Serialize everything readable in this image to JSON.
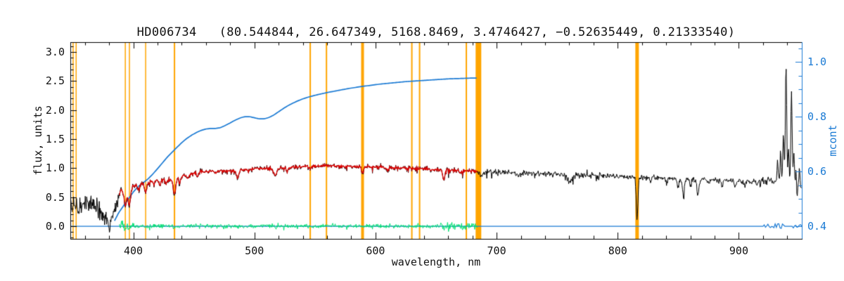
{
  "chart_data": {
    "type": "line",
    "title": "HD006734   (80.544844, 26.647349, 5168.8469, 3.4746427, −0.52635449, 0.21333540)",
    "xlabel": "wavelength, nm",
    "ylabel_left": "flux, units",
    "ylabel_right": "mcont",
    "grid": false,
    "legend": "none",
    "x_axis": {
      "range": [
        348,
        952
      ],
      "major_ticks": [
        400,
        500,
        600,
        700,
        800,
        900
      ],
      "tick_labels": [
        "400",
        "500",
        "600",
        "700",
        "800",
        "900"
      ],
      "minor_step": 20
    },
    "y_axis_left": {
      "range": [
        -0.22,
        3.17
      ],
      "major_ticks": [
        0.0,
        0.5,
        1.0,
        1.5,
        2.0,
        2.5,
        3.0
      ],
      "tick_labels": [
        "0.0",
        "0.5",
        "1.0",
        "1.5",
        "2.0",
        "2.5",
        "3.0"
      ],
      "minor_step": 0.1
    },
    "y_axis_right": {
      "range": [
        0.354,
        1.072
      ],
      "major_ticks": [
        0.4,
        0.6,
        0.8,
        1.0
      ],
      "tick_labels": [
        "0.4",
        "0.6",
        "0.8",
        "1.0"
      ],
      "minor_step": 0.05
    },
    "colors": {
      "spectrum": "#000000",
      "fit": "#e00000",
      "residual": "#00e070",
      "continuum": "#1a7ad4",
      "markers": "#ffa500",
      "text": "#111111",
      "background": "#ffffff"
    },
    "marker_lines": [
      [
        350.3,
        1.5
      ],
      [
        352.8,
        1.5
      ],
      [
        393.4,
        1.5
      ],
      [
        396.8,
        1.5
      ],
      [
        410.2,
        1.5
      ],
      [
        434.0,
        2
      ],
      [
        546.1,
        2
      ],
      [
        559.5,
        2
      ],
      [
        589.3,
        4
      ],
      [
        630.0,
        2
      ],
      [
        636.4,
        2
      ],
      [
        675.0,
        2
      ],
      [
        685.0,
        8
      ],
      [
        816.0,
        5
      ]
    ],
    "series": {
      "observed_spectrum": {
        "color_key": "spectrum",
        "noise_sigma": 0.022,
        "envelope": [
          [
            348,
            0.34
          ],
          [
            356,
            0.33
          ],
          [
            364,
            0.32
          ],
          [
            370,
            0.3
          ],
          [
            374,
            0.24
          ],
          [
            377,
            0.12
          ],
          [
            380,
            0.07
          ],
          [
            383,
            0.18
          ],
          [
            386,
            0.42
          ],
          [
            389,
            0.58
          ],
          [
            392,
            0.63
          ],
          [
            396,
            0.6
          ],
          [
            400,
            0.7
          ],
          [
            406,
            0.72
          ],
          [
            412,
            0.75
          ],
          [
            418,
            0.79
          ],
          [
            424,
            0.8
          ],
          [
            430,
            0.79
          ],
          [
            436,
            0.83
          ],
          [
            442,
            0.87
          ],
          [
            448,
            0.9
          ],
          [
            456,
            0.93
          ],
          [
            464,
            0.945
          ],
          [
            472,
            0.95
          ],
          [
            480,
            0.955
          ],
          [
            490,
            0.97
          ],
          [
            500,
            0.99
          ],
          [
            510,
            0.985
          ],
          [
            520,
            1.0
          ],
          [
            530,
            1.015
          ],
          [
            540,
            1.03
          ],
          [
            550,
            1.035
          ],
          [
            560,
            1.04
          ],
          [
            570,
            1.035
          ],
          [
            580,
            1.03
          ],
          [
            590,
            1.025
          ],
          [
            600,
            1.02
          ],
          [
            612,
            1.005
          ],
          [
            624,
            1.0
          ],
          [
            636,
            0.99
          ],
          [
            648,
            0.975
          ],
          [
            660,
            0.965
          ],
          [
            672,
            0.955
          ],
          [
            684,
            0.945
          ],
          [
            696,
            0.935
          ],
          [
            708,
            0.925
          ],
          [
            720,
            0.915
          ],
          [
            732,
            0.905
          ],
          [
            744,
            0.895
          ],
          [
            756,
            0.885
          ],
          [
            768,
            0.885
          ],
          [
            780,
            0.875
          ],
          [
            792,
            0.865
          ],
          [
            804,
            0.855
          ],
          [
            816,
            0.845
          ],
          [
            828,
            0.835
          ],
          [
            840,
            0.825
          ],
          [
            852,
            0.81
          ],
          [
            864,
            0.8
          ],
          [
            876,
            0.8
          ],
          [
            888,
            0.79
          ],
          [
            900,
            0.78
          ],
          [
            912,
            0.775
          ],
          [
            924,
            0.775
          ],
          [
            936,
            0.775
          ],
          [
            944,
            0.76
          ],
          [
            952,
            0.66
          ]
        ],
        "absorption_dips": [
          [
            393.4,
            0.3,
            1.0
          ],
          [
            396.8,
            0.26,
            1.0
          ],
          [
            404,
            0.1,
            0.8
          ],
          [
            410.2,
            0.17,
            0.9
          ],
          [
            417,
            0.07,
            0.7
          ],
          [
            422,
            0.1,
            0.8
          ],
          [
            427,
            0.08,
            0.7
          ],
          [
            434.0,
            0.28,
            1.0
          ],
          [
            438.5,
            0.1,
            0.7
          ],
          [
            445,
            0.08,
            0.7
          ],
          [
            453,
            0.07,
            0.6
          ],
          [
            468,
            0.05,
            0.6
          ],
          [
            486.1,
            0.14,
            0.9
          ],
          [
            495,
            0.05,
            0.6
          ],
          [
            517,
            0.13,
            1.3
          ],
          [
            527,
            0.08,
            0.8
          ],
          [
            546,
            0.05,
            0.6
          ],
          [
            589.3,
            0.11,
            0.9
          ],
          [
            610,
            0.04,
            0.6
          ],
          [
            656.3,
            0.2,
            0.9
          ],
          [
            670,
            0.05,
            0.6
          ],
          [
            687.5,
            0.07,
            1.4
          ],
          [
            718,
            0.05,
            1.4
          ],
          [
            760,
            0.13,
            2.0
          ],
          [
            816,
            0.72,
            0.7
          ],
          [
            827,
            0.06,
            0.7
          ],
          [
            840,
            0.08,
            0.7
          ],
          [
            849.8,
            0.15,
            0.7
          ],
          [
            854.2,
            0.28,
            0.8
          ],
          [
            860,
            0.12,
            0.6
          ],
          [
            866.2,
            0.25,
            0.8
          ],
          [
            875,
            0.08,
            0.6
          ],
          [
            886,
            0.08,
            0.6
          ],
          [
            897,
            0.1,
            0.7
          ],
          [
            905,
            0.09,
            0.7
          ],
          [
            915,
            0.07,
            0.6
          ],
          [
            948,
            0.22,
            0.6
          ]
        ],
        "emission_spikes": [
          [
            932,
            0.35,
            0.45
          ],
          [
            934.5,
            0.55,
            0.45
          ],
          [
            936.8,
            0.85,
            0.5
          ],
          [
            939,
            2.0,
            0.55
          ],
          [
            941,
            0.6,
            0.45
          ],
          [
            943.5,
            1.55,
            0.55
          ],
          [
            945.5,
            0.5,
            0.45
          ],
          [
            947.3,
            0.35,
            0.4
          ],
          [
            950,
            0.3,
            0.45
          ]
        ]
      },
      "fitted_spectrum": {
        "color_key": "fit",
        "x_range": [
          388,
          684
        ]
      },
      "fit_residual": {
        "color_key": "residual",
        "x_range": [
          388,
          684
        ],
        "baseline": 0.0
      },
      "mcont_continuum": {
        "color_key": "continuum",
        "axis": "right",
        "points": [
          [
            384.5,
            0.42
          ],
          [
            388,
            0.45
          ],
          [
            392,
            0.475
          ],
          [
            396,
            0.5
          ],
          [
            400,
            0.525
          ],
          [
            404,
            0.545
          ],
          [
            408,
            0.558
          ],
          [
            412,
            0.572
          ],
          [
            416,
            0.59
          ],
          [
            420,
            0.61
          ],
          [
            424,
            0.631
          ],
          [
            428,
            0.652
          ],
          [
            432,
            0.67
          ],
          [
            436,
            0.688
          ],
          [
            440,
            0.705
          ],
          [
            444,
            0.72
          ],
          [
            448,
            0.732
          ],
          [
            452,
            0.742
          ],
          [
            456,
            0.75
          ],
          [
            460,
            0.755
          ],
          [
            464,
            0.757
          ],
          [
            468,
            0.757
          ],
          [
            472,
            0.76
          ],
          [
            476,
            0.768
          ],
          [
            480,
            0.777
          ],
          [
            484,
            0.787
          ],
          [
            488,
            0.795
          ],
          [
            492,
            0.8
          ],
          [
            496,
            0.8
          ],
          [
            500,
            0.796
          ],
          [
            504,
            0.792
          ],
          [
            508,
            0.792
          ],
          [
            512,
            0.797
          ],
          [
            516,
            0.806
          ],
          [
            520,
            0.818
          ],
          [
            524,
            0.83
          ],
          [
            528,
            0.841
          ],
          [
            532,
            0.85
          ],
          [
            536,
            0.858
          ],
          [
            540,
            0.865
          ],
          [
            545,
            0.872
          ],
          [
            550,
            0.878
          ],
          [
            555,
            0.883
          ],
          [
            560,
            0.888
          ],
          [
            566,
            0.893
          ],
          [
            572,
            0.898
          ],
          [
            578,
            0.903
          ],
          [
            584,
            0.907
          ],
          [
            590,
            0.911
          ],
          [
            597,
            0.915
          ],
          [
            604,
            0.919
          ],
          [
            611,
            0.922
          ],
          [
            618,
            0.925
          ],
          [
            625,
            0.928
          ],
          [
            632,
            0.93
          ],
          [
            639,
            0.932
          ],
          [
            646,
            0.934
          ],
          [
            653,
            0.936
          ],
          [
            660,
            0.938
          ],
          [
            667,
            0.939
          ],
          [
            674,
            0.94
          ],
          [
            680,
            0.941
          ],
          [
            684,
            0.941
          ]
        ]
      },
      "mcont_floor": {
        "color_key": "continuum",
        "axis": "right",
        "level": 0.4,
        "x_range": [
          348,
          952
        ]
      }
    }
  }
}
